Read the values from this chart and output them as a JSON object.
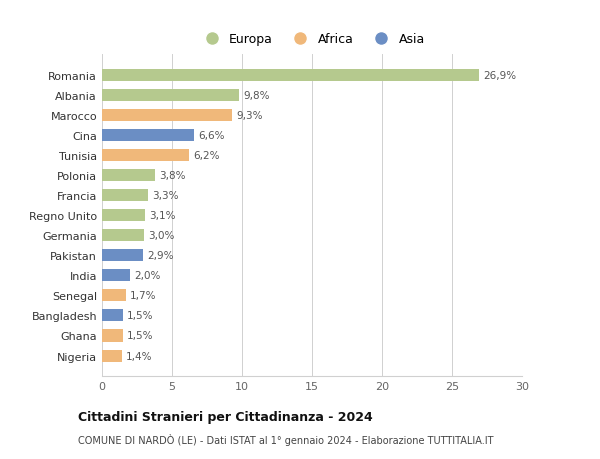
{
  "countries": [
    "Nigeria",
    "Ghana",
    "Bangladesh",
    "Senegal",
    "India",
    "Pakistan",
    "Germania",
    "Regno Unito",
    "Francia",
    "Polonia",
    "Tunisia",
    "Cina",
    "Marocco",
    "Albania",
    "Romania"
  ],
  "values": [
    1.4,
    1.5,
    1.5,
    1.7,
    2.0,
    2.9,
    3.0,
    3.1,
    3.3,
    3.8,
    6.2,
    6.6,
    9.3,
    9.8,
    26.9
  ],
  "labels": [
    "1,4%",
    "1,5%",
    "1,5%",
    "1,7%",
    "2,0%",
    "2,9%",
    "3,0%",
    "3,1%",
    "3,3%",
    "3,8%",
    "6,2%",
    "6,6%",
    "9,3%",
    "9,8%",
    "26,9%"
  ],
  "continents": [
    "Africa",
    "Africa",
    "Asia",
    "Africa",
    "Asia",
    "Asia",
    "Europa",
    "Europa",
    "Europa",
    "Europa",
    "Africa",
    "Asia",
    "Africa",
    "Europa",
    "Europa"
  ],
  "colors": {
    "Europa": "#b5c98e",
    "Africa": "#f0b87a",
    "Asia": "#6b8ec4"
  },
  "title": "Cittadini Stranieri per Cittadinanza - 2024",
  "subtitle": "COMUNE DI NARDÒ (LE) - Dati ISTAT al 1° gennaio 2024 - Elaborazione TUTTITALIA.IT",
  "xlim": [
    0,
    30
  ],
  "xticks": [
    0,
    5,
    10,
    15,
    20,
    25,
    30
  ],
  "legend_labels": [
    "Europa",
    "Africa",
    "Asia"
  ],
  "legend_colors": [
    "#b5c98e",
    "#f0b87a",
    "#6b8ec4"
  ],
  "bg_color": "#ffffff",
  "grid_color": "#d0d0d0"
}
